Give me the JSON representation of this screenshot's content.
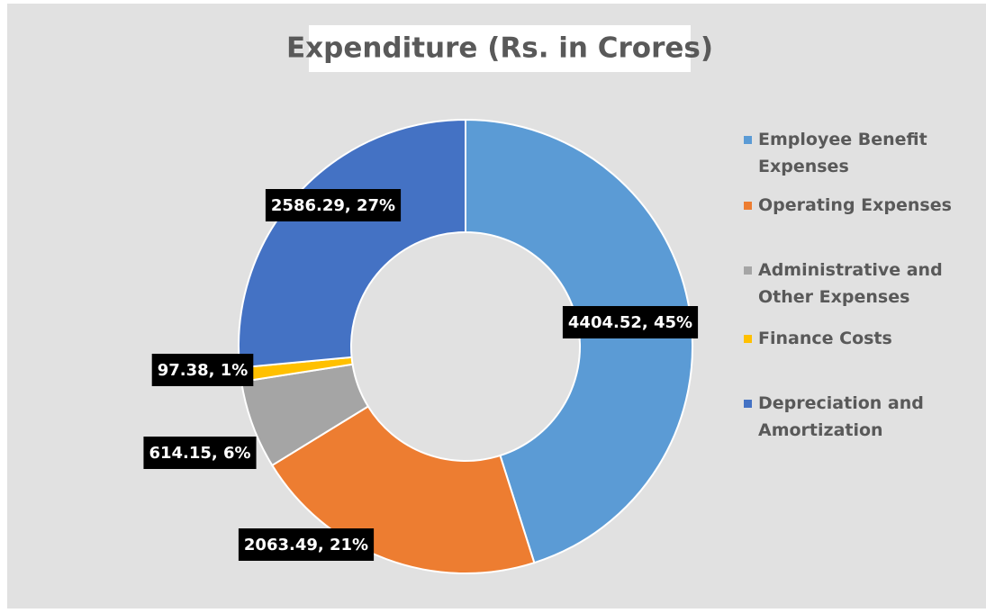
{
  "chart_data": {
    "type": "donut",
    "title": "Expenditure (Rs. in Crores)",
    "categories": [
      "Employee Benefit Expenses",
      "Operating Expenses",
      "Administrative and Other Expenses",
      "Finance Costs",
      "Depreciation and Amortization"
    ],
    "values": [
      4404.52,
      2063.49,
      614.15,
      97.38,
      2586.29
    ],
    "value_labels": [
      "4404.52, 45%",
      "2063.49, 21%",
      "614.15, 6%",
      "97.38, 1%",
      "2586.29, 27%"
    ],
    "colors": [
      "#5b9bd5",
      "#ed7d31",
      "#a5a5a5",
      "#ffc000",
      "#4472c4"
    ],
    "legend": "right"
  }
}
